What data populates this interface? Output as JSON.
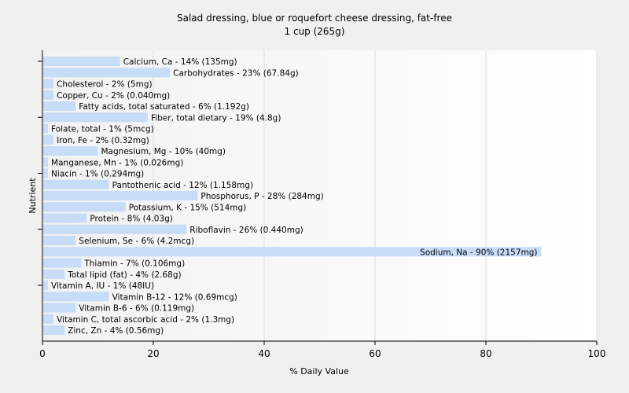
{
  "chart_data": {
    "type": "bar",
    "orientation": "horizontal",
    "title": "Salad dressing, blue or roquefort cheese dressing, fat-free",
    "subtitle": "1 cup (265g)",
    "xlabel": "% Daily Value",
    "ylabel": "Nutrient",
    "xlim": [
      0,
      100
    ],
    "xticks": [
      0,
      20,
      40,
      60,
      80,
      100
    ],
    "grid": true,
    "bar_color": "#c6dcf7",
    "categories": [
      "Calcium, Ca",
      "Carbohydrates",
      "Cholesterol",
      "Copper, Cu",
      "Fatty acids, total saturated",
      "Fiber, total dietary",
      "Folate, total",
      "Iron, Fe",
      "Magnesium, Mg",
      "Manganese, Mn",
      "Niacin",
      "Pantothenic acid",
      "Phosphorus, P",
      "Potassium, K",
      "Protein",
      "Riboflavin",
      "Selenium, Se",
      "Sodium, Na",
      "Thiamin",
      "Total lipid (fat)",
      "Vitamin A, IU",
      "Vitamin B-12",
      "Vitamin B-6",
      "Vitamin C, total ascorbic acid",
      "Zinc, Zn"
    ],
    "values": [
      14,
      23,
      2,
      2,
      6,
      19,
      1,
      2,
      10,
      1,
      1,
      12,
      28,
      15,
      8,
      26,
      6,
      90,
      7,
      4,
      1,
      12,
      6,
      2,
      4
    ],
    "labels": [
      "Calcium, Ca - 14% (135mg)",
      "Carbohydrates - 23% (67.84g)",
      "Cholesterol - 2% (5mg)",
      "Copper, Cu - 2% (0.040mg)",
      "Fatty acids, total saturated - 6% (1.192g)",
      "Fiber, total dietary - 19% (4.8g)",
      "Folate, total - 1% (5mcg)",
      "Iron, Fe - 2% (0.32mg)",
      "Magnesium, Mg - 10% (40mg)",
      "Manganese, Mn - 1% (0.026mg)",
      "Niacin - 1% (0.294mg)",
      "Pantothenic acid - 12% (1.158mg)",
      "Phosphorus, P - 28% (284mg)",
      "Potassium, K - 15% (514mg)",
      "Protein - 8% (4.03g)",
      "Riboflavin - 26% (0.440mg)",
      "Selenium, Se - 6% (4.2mcg)",
      "Sodium, Na - 90% (2157mg)",
      "Thiamin - 7% (0.106mg)",
      "Total lipid (fat) - 4% (2.68g)",
      "Vitamin A, IU - 1% (48IU)",
      "Vitamin B-12 - 12% (0.69mcg)",
      "Vitamin B-6 - 6% (0.119mg)",
      "Vitamin C, total ascorbic acid - 2% (1.3mg)",
      "Zinc, Zn - 4% (0.56mg)"
    ]
  }
}
